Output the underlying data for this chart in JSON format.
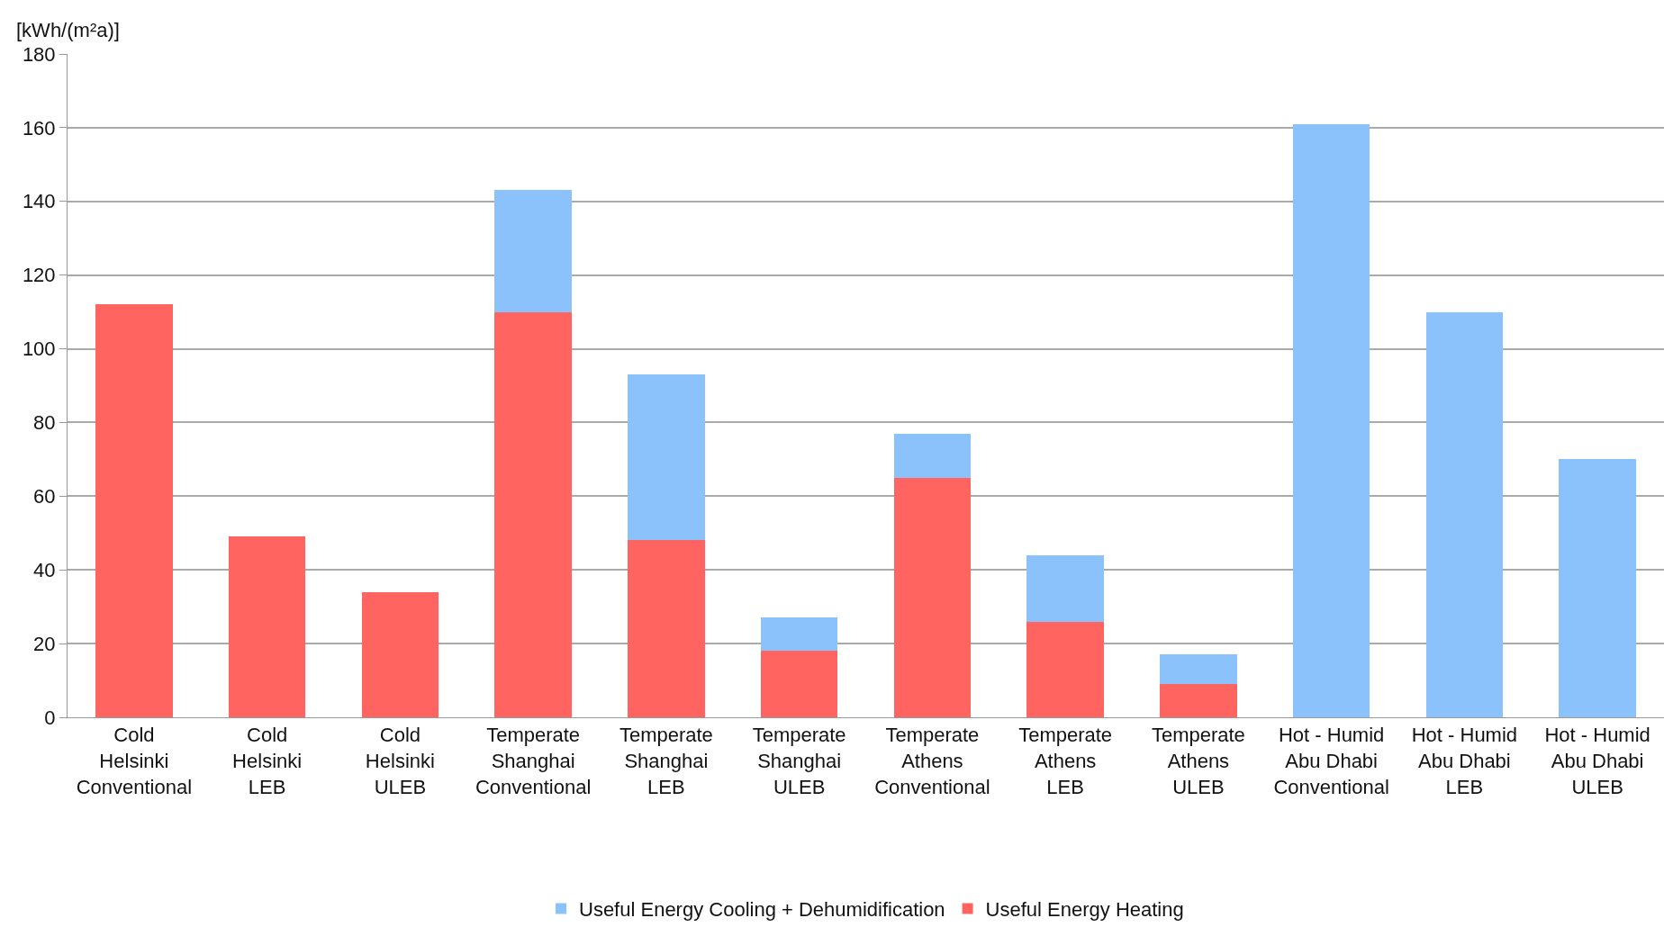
{
  "chart_data": {
    "type": "bar",
    "ylabel": "[kWh/(m²a)]",
    "stacked": true,
    "categories": [
      "Cold\nHelsinki\nConventional",
      "Cold\nHelsinki\nLEB",
      "Cold\nHelsinki\nULEB",
      "Temperate\nShanghai\nConventional",
      "Temperate\nShanghai\nLEB",
      "Temperate\nShanghai\nULEB",
      "Temperate\nAthens\nConventional",
      "Temperate\nAthens\nLEB",
      "Temperate\nAthens\nULEB",
      "Hot - Humid\nAbu Dhabi\nConventional",
      "Hot - Humid\nAbu Dhabi\nLEB",
      "Hot - Humid\nAbu Dhabi\nULEB"
    ],
    "series": [
      {
        "name": "Useful Energy Heating",
        "color": "#ff6460",
        "values": [
          112,
          49,
          34,
          110,
          48,
          18,
          65,
          26,
          9,
          0,
          0,
          0
        ]
      },
      {
        "name": "Useful Energy Cooling + Dehumidification",
        "color": "#8cc2fc",
        "values": [
          0,
          0,
          0,
          33,
          45,
          9,
          12,
          18,
          8,
          161,
          110,
          70
        ]
      }
    ],
    "ylim": [
      0,
      180
    ],
    "yticks": [
      0,
      20,
      40,
      60,
      80,
      100,
      120,
      140,
      160,
      180
    ],
    "grid": "y",
    "legend": "bottom"
  }
}
